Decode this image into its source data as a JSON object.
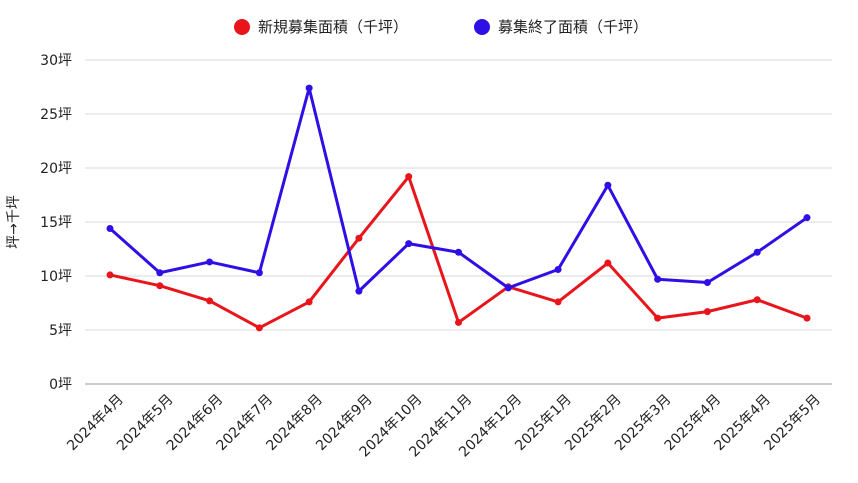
{
  "chart_data": {
    "type": "line",
    "categories": [
      "2024年4月",
      "2024年5月",
      "2024年6月",
      "2024年7月",
      "2024年8月",
      "2024年9月",
      "2024年10月",
      "2024年11月",
      "2024年12月",
      "2025年1月",
      "2025年2月",
      "2025年3月",
      "2025年4月",
      "2025年4月",
      "2025年5月"
    ],
    "series": [
      {
        "name": "新規募集面積（千坪）",
        "color": "#e8151b",
        "values": [
          10.1,
          9.1,
          7.7,
          5.2,
          7.6,
          13.5,
          19.2,
          5.7,
          9.0,
          7.6,
          11.2,
          6.1,
          6.7,
          7.8,
          6.1
        ]
      },
      {
        "name": "募集終了面積（千坪）",
        "color": "#2e0fe6",
        "values": [
          14.4,
          10.3,
          11.3,
          10.3,
          27.4,
          8.6,
          13.0,
          12.2,
          8.9,
          10.6,
          18.4,
          9.7,
          9.4,
          12.2,
          15.4
        ]
      }
    ],
    "ylabel": "坪→千坪",
    "ylim": [
      0,
      30
    ],
    "yticks": [
      0,
      5,
      10,
      15,
      20,
      25,
      30
    ],
    "ytick_labels": [
      "0坪",
      "5坪",
      "10坪",
      "15坪",
      "20坪",
      "25坪",
      "30坪"
    ],
    "grid": true,
    "legend_position": "top"
  }
}
